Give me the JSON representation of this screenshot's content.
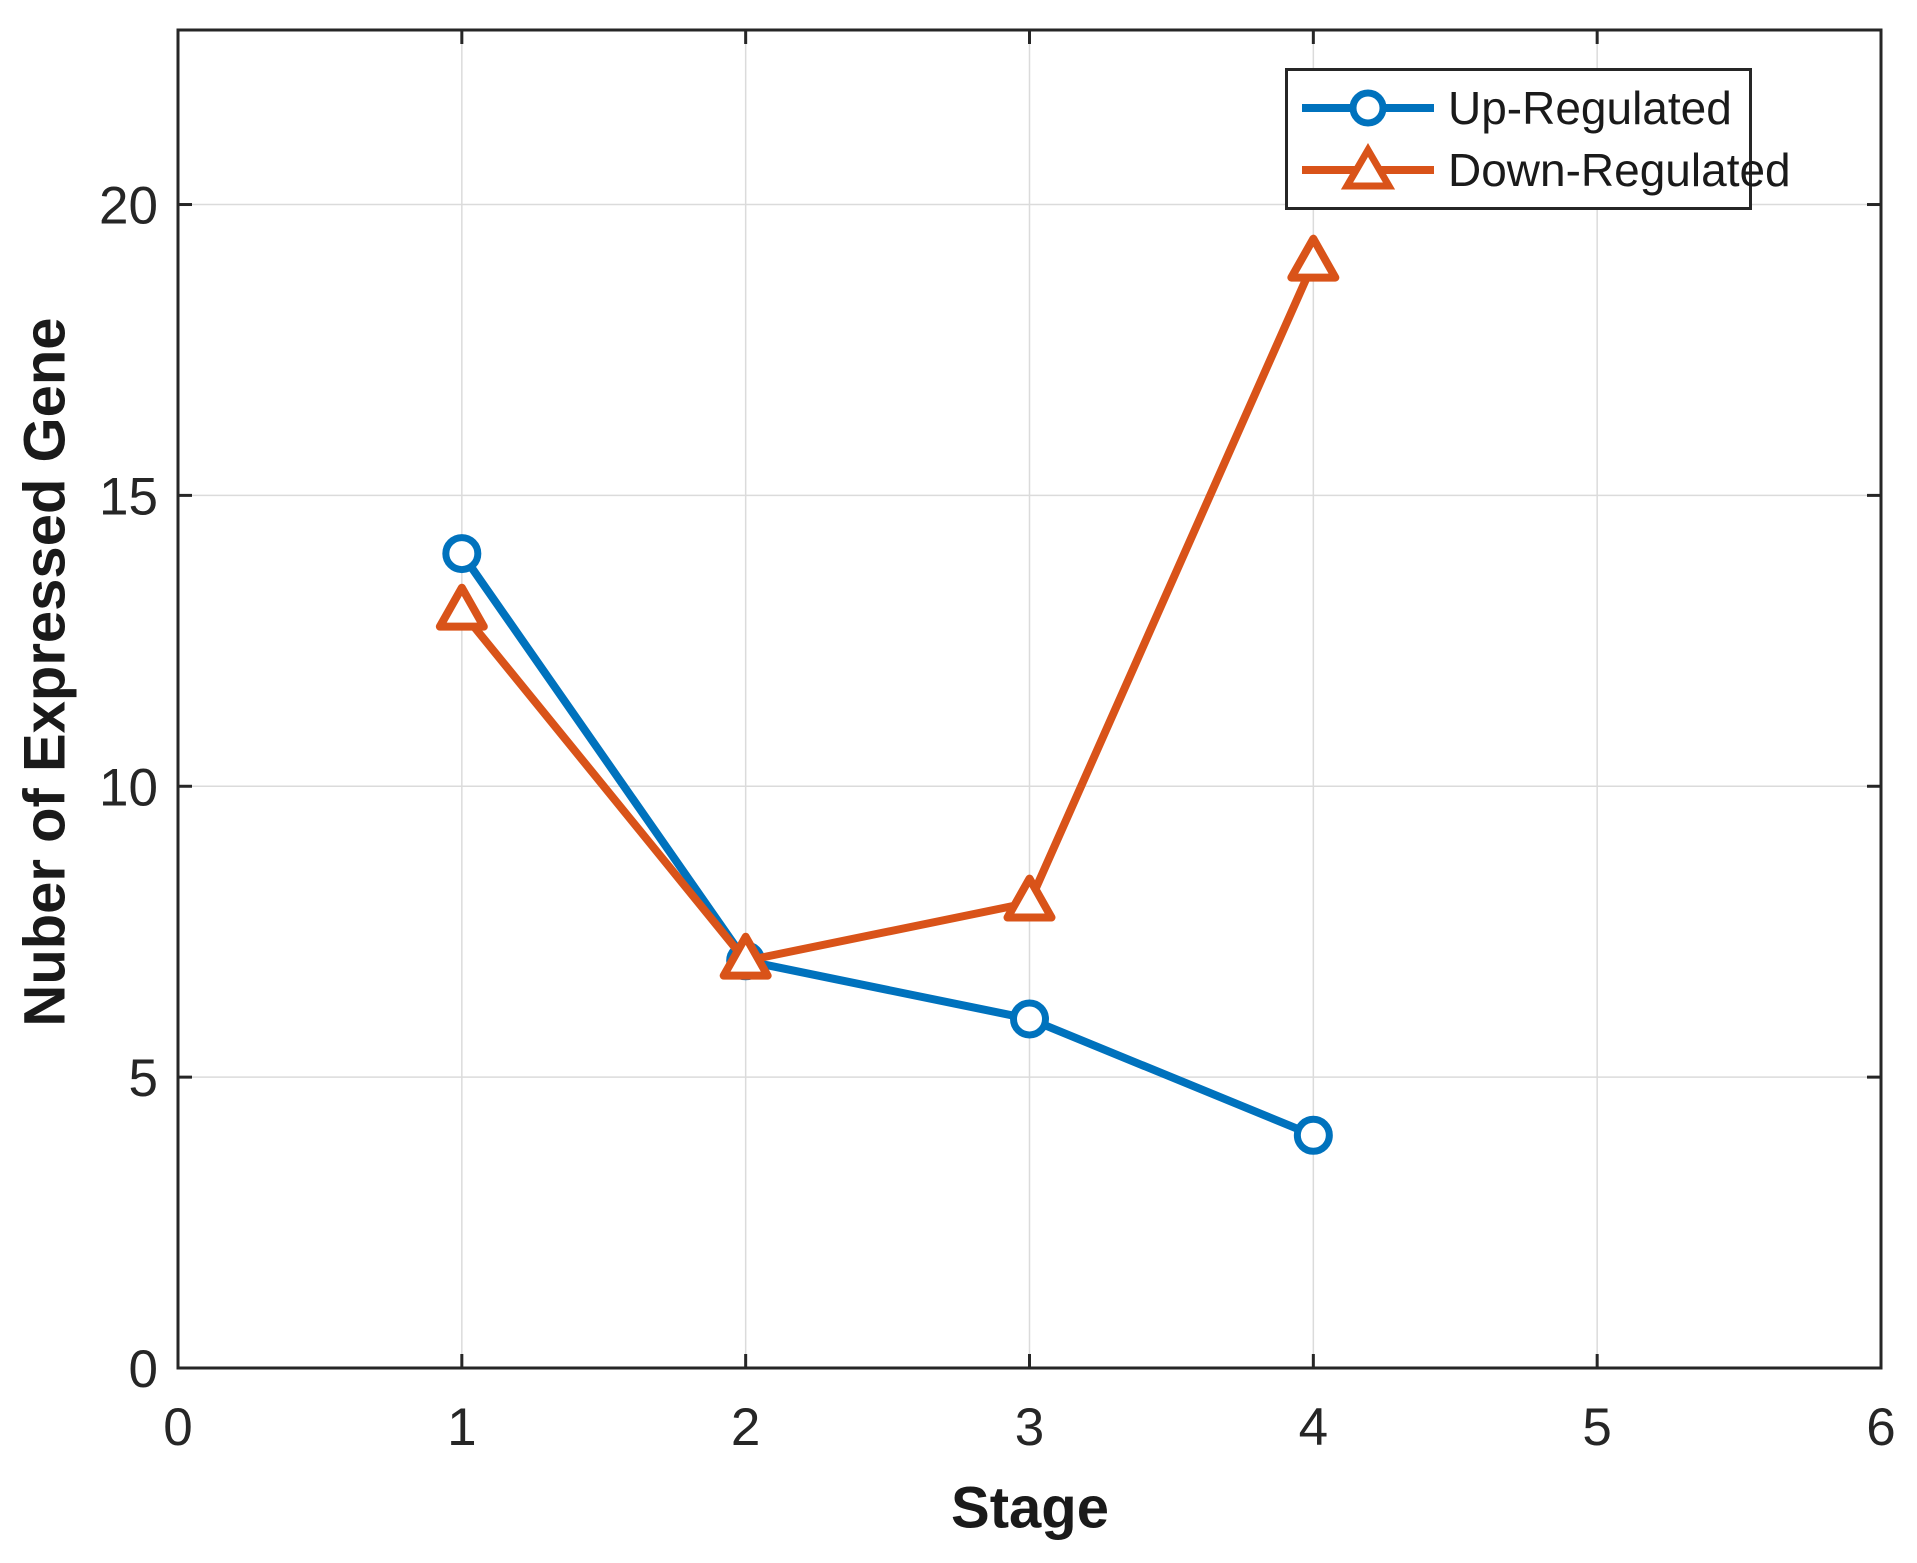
{
  "chart_data": {
    "type": "line",
    "title": "",
    "xlabel": "Stage",
    "ylabel": "Nuber of Expressed Gene",
    "x": [
      1,
      2,
      3,
      4
    ],
    "series": [
      {
        "name": "Up-Regulated",
        "color": "#0072BD",
        "marker": "circle",
        "values": [
          14,
          7,
          6,
          4
        ]
      },
      {
        "name": "Down-Regulated",
        "color": "#D95319",
        "marker": "triangle",
        "values": [
          13,
          7,
          8,
          19
        ]
      }
    ],
    "xlim": [
      0,
      6
    ],
    "ylim": [
      0,
      23
    ],
    "xticks": [
      0,
      1,
      2,
      3,
      4,
      5,
      6
    ],
    "yticks": [
      0,
      5,
      10,
      15,
      20
    ],
    "grid": true,
    "legend_position": "top-right"
  },
  "style": {
    "axes_color": "#262626",
    "grid_color": "#dbdbdb",
    "background": "#ffffff"
  }
}
